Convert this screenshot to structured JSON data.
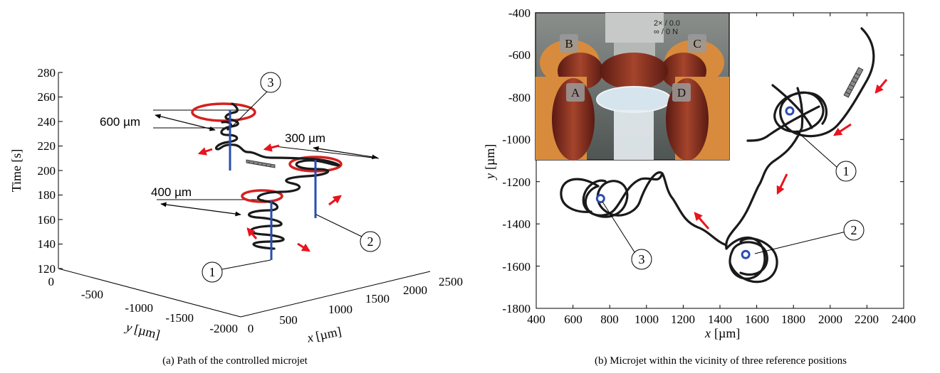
{
  "left_plot": {
    "zlabel": "Time [s]",
    "ylabel_var": "y",
    "ylabel_unit": "[µm]",
    "xlabel_var": "x",
    "xlabel_unit": "[µm]",
    "z_ticks": [
      "120",
      "140",
      "160",
      "180",
      "200",
      "220",
      "240",
      "260",
      "280"
    ],
    "y_ticks": [
      "0",
      "-500",
      "-1000",
      "-1500",
      "-2000"
    ],
    "x_ticks": [
      "0",
      "500",
      "1000",
      "1500",
      "2000",
      "2500"
    ],
    "annotations": {
      "a600": "600 µm",
      "a300": "300 µm",
      "a400": "400 µm"
    },
    "markers": [
      "1",
      "2",
      "3"
    ],
    "caption": "(a) Path of the controlled microjet"
  },
  "right_plot": {
    "ylabel_var": "y",
    "ylabel_unit": "[µm]",
    "xlabel_var": "x",
    "xlabel_unit": "[µm]",
    "x_ticks": [
      "400",
      "600",
      "800",
      "1000",
      "1200",
      "1400",
      "1600",
      "1800",
      "2000",
      "2200",
      "2400"
    ],
    "y_ticks": [
      "-400",
      "-600",
      "-800",
      "-1000",
      "-1200",
      "-1400",
      "-1600",
      "-1800"
    ],
    "xlim": [
      400,
      2400
    ],
    "ylim": [
      -1800,
      -400
    ],
    "reference_positions": [
      {
        "label": "1",
        "x": 1780,
        "y": -865
      },
      {
        "label": "2",
        "x": 1540,
        "y": -1545
      },
      {
        "label": "3",
        "x": 750,
        "y": -1280
      }
    ],
    "inset_labels": [
      "A",
      "B",
      "C",
      "D"
    ],
    "objective_text": [
      "2× / 0.0",
      "∞ / 0 N"
    ],
    "caption": "(b) Microjet within the vicinity of three reference positions"
  },
  "colors": {
    "path": "#1a1a1a",
    "reference": "#d42020",
    "axis_line": "#2a4db0",
    "arrow": "#e8141e",
    "marker": "#2a4db0"
  }
}
